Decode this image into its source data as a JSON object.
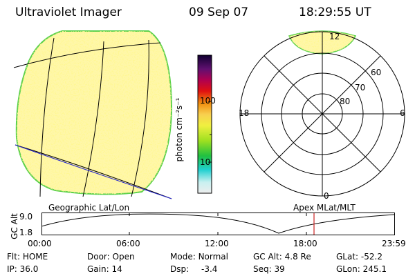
{
  "header": {
    "instrument": "Ultraviolet Imager",
    "date": "09 Sep 07",
    "time": "18:29:55 UT"
  },
  "colorbar": {
    "unit_label": "photon cm⁻²s⁻¹",
    "tick_100": "100",
    "tick_10": "10",
    "log_max": 2.45,
    "log_min": 0.55
  },
  "polar_plot": {
    "lat_labels": [
      "80",
      "70",
      "60"
    ],
    "mlt_labels": {
      "top": "12",
      "left": "18",
      "right": "6",
      "bottom": "0"
    }
  },
  "labels": {
    "geo": "Geographic Lat/Lon",
    "apex": "Apex MLat/MLT"
  },
  "alt_plot": {
    "y_axis_label": "GC Alt",
    "y_max": "9.0",
    "y_min": "1.8",
    "x_ticks": [
      "00:00",
      "06:00",
      "12:00",
      "18:00",
      "23:59"
    ],
    "current_time_marker": "18:29:55",
    "marker_color": "#cc2222"
  },
  "status": {
    "flt_label": "Flt:",
    "flt_value": "HOME",
    "ip_label": "IP:",
    "ip_value": "36.0",
    "door_label": "Door:",
    "door_value": "Open",
    "gain_label": "Gain:",
    "gain_value": "14",
    "mode_label": "Mode:",
    "mode_value": "Normal",
    "dsp_label": "Dsp:",
    "dsp_value": "-3.4",
    "gcalt_label": "GC Alt:",
    "gcalt_value": "4.8 Re",
    "seq_label": "Seq:",
    "seq_value": "39",
    "glat_label": "GLat:",
    "glat_value": "-52.2",
    "glon_label": "GLon:",
    "glon_value": "245.1"
  }
}
